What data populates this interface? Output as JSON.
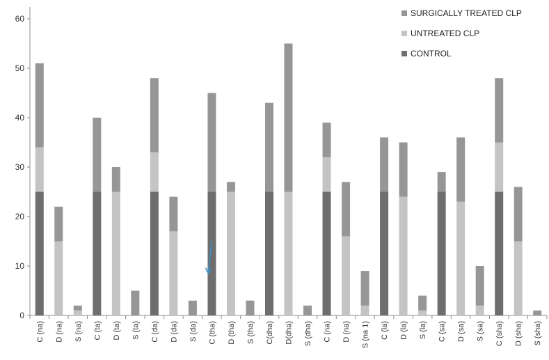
{
  "chart_data": {
    "type": "bar",
    "stacked": true,
    "categories": [
      "C (na)",
      "D (na)",
      "S (na)",
      "C (ta)",
      "D (ta)",
      "S (ta)",
      "C (da)",
      "D (da)",
      "S (da)",
      "C (tha)",
      "D (tha)",
      "S (tha)",
      "C(dha)",
      "D(dha)",
      "S (dha)",
      "C (na)",
      "D (na)",
      "S (na 1)",
      "C (la)",
      "D (la)",
      "S (la)",
      "C (sa)",
      "D (sa)",
      "S (sa)",
      "C (sha)",
      "D (sha)",
      "S (sha)"
    ],
    "series": [
      {
        "name": "CONTROL",
        "color": "#6e6e6e",
        "values": [
          25,
          0,
          0,
          25,
          0,
          0,
          25,
          0,
          0,
          25,
          0,
          0,
          25,
          0,
          0,
          25,
          0,
          0,
          25,
          0,
          0,
          25,
          0,
          0,
          25,
          0,
          0
        ]
      },
      {
        "name": "UNTREATED CLP",
        "color": "#c4c4c4",
        "values": [
          9,
          15,
          1,
          0,
          25,
          0,
          8,
          17,
          0,
          0,
          25,
          0,
          0,
          25,
          0,
          7,
          16,
          2,
          0,
          24,
          1,
          0,
          23,
          2,
          10,
          15,
          0
        ]
      },
      {
        "name": "SURGICALLY TREATED CLP",
        "color": "#969696",
        "values": [
          17,
          7,
          1,
          15,
          5,
          5,
          15,
          7,
          3,
          20,
          2,
          3,
          18,
          30,
          2,
          7,
          11,
          7,
          11,
          11,
          3,
          4,
          13,
          8,
          13,
          11,
          1
        ]
      }
    ],
    "title": "",
    "xlabel": "",
    "ylabel": "",
    "ylim": [
      0,
      60
    ],
    "yticks": [
      0,
      10,
      20,
      30,
      40,
      50,
      60
    ],
    "grid": false,
    "legend_position": "top-right",
    "annotation": {
      "type": "arrow",
      "color": "#3d8fc4",
      "at_category_index": 9,
      "from_value": 15,
      "to_value": 8.5
    }
  }
}
